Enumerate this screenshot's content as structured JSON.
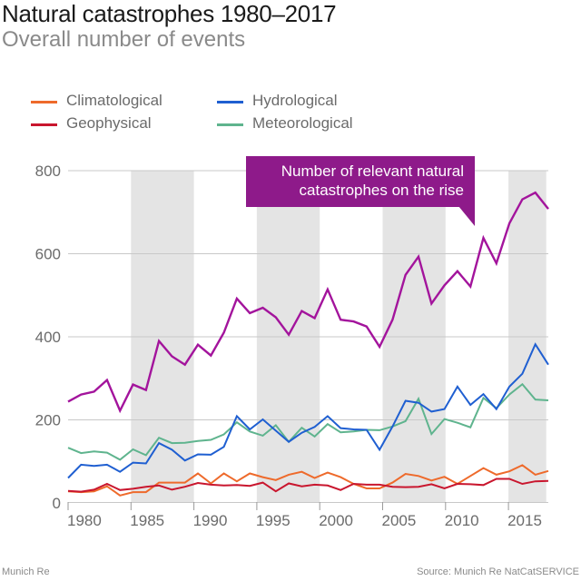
{
  "header": {
    "title": "Natural catastrophes 1980–2017",
    "subtitle": "Overall number of events"
  },
  "footer": {
    "left": "Munich Re",
    "right": "Source: Munich Re NatCatSERVICE"
  },
  "annotation": {
    "line1": "Number of relevant natural",
    "line2": "catastrophes on the rise"
  },
  "chart_data": {
    "type": "line",
    "title": "Natural catastrophes 1980–2017",
    "subtitle": "Overall number of events",
    "xlabel": "",
    "ylabel": "",
    "ylim": [
      0,
      800
    ],
    "xlim": [
      1980,
      2017
    ],
    "yticks": [
      0,
      200,
      400,
      600,
      800
    ],
    "xticks": [
      1980,
      1985,
      1990,
      1995,
      2000,
      2005,
      2010,
      2015
    ],
    "grid": true,
    "shaded_periods": [
      [
        1985,
        1990
      ],
      [
        1995,
        2000
      ],
      [
        2005,
        2010
      ],
      [
        2015,
        2018
      ]
    ],
    "legend_position": "top-left",
    "x": [
      1980,
      1981,
      1982,
      1983,
      1984,
      1985,
      1986,
      1987,
      1988,
      1989,
      1990,
      1991,
      1992,
      1993,
      1994,
      1995,
      1996,
      1997,
      1998,
      1999,
      2000,
      2001,
      2002,
      2003,
      2004,
      2005,
      2006,
      2007,
      2008,
      2009,
      2010,
      2011,
      2012,
      2013,
      2014,
      2015,
      2016,
      2017
    ],
    "series": [
      {
        "name": "Total",
        "color": "#a3149c",
        "in_legend": false,
        "values": [
          244,
          261,
          268,
          296,
          222,
          285,
          272,
          390,
          353,
          333,
          381,
          355,
          410,
          492,
          457,
          470,
          447,
          405,
          462,
          445,
          514,
          441,
          437,
          425,
          376,
          441,
          549,
          593,
          480,
          524,
          558,
          521,
          638,
          577,
          673,
          731,
          747,
          708
        ]
      },
      {
        "name": "Hydrological",
        "color": "#1f5fd1",
        "in_legend": true,
        "values": [
          60,
          92,
          89,
          92,
          75,
          97,
          95,
          144,
          128,
          102,
          117,
          116,
          135,
          209,
          177,
          201,
          174,
          147,
          169,
          183,
          209,
          180,
          177,
          176,
          128,
          184,
          246,
          241,
          220,
          226,
          280,
          236,
          262,
          226,
          280,
          311,
          382,
          333
        ]
      },
      {
        "name": "Meteorological",
        "color": "#5fb48e",
        "in_legend": true,
        "values": [
          133,
          120,
          124,
          121,
          104,
          129,
          115,
          157,
          144,
          145,
          149,
          152,
          165,
          194,
          172,
          162,
          187,
          147,
          181,
          160,
          190,
          170,
          172,
          176,
          175,
          184,
          197,
          251,
          166,
          202,
          193,
          182,
          253,
          228,
          261,
          286,
          249,
          247
        ]
      },
      {
        "name": "Climatological",
        "color": "#ee6a2b",
        "in_legend": true,
        "values": [
          28,
          26,
          28,
          40,
          18,
          26,
          26,
          49,
          49,
          49,
          71,
          47,
          71,
          52,
          71,
          62,
          55,
          68,
          75,
          60,
          73,
          62,
          46,
          35,
          35,
          49,
          70,
          65,
          54,
          63,
          46,
          65,
          84,
          68,
          76,
          91,
          68,
          77
        ]
      },
      {
        "name": "Geophysical",
        "color": "#c9162e",
        "in_legend": true,
        "values": [
          29,
          27,
          32,
          46,
          31,
          34,
          39,
          42,
          32,
          39,
          48,
          44,
          42,
          43,
          41,
          49,
          28,
          47,
          40,
          44,
          42,
          31,
          46,
          44,
          44,
          39,
          38,
          39,
          45,
          35,
          46,
          45,
          43,
          58,
          58,
          46,
          52,
          53
        ]
      }
    ]
  },
  "legend": [
    {
      "label": "Climatological",
      "color": "#ee6a2b"
    },
    {
      "label": "Geophysical",
      "color": "#c9162e"
    },
    {
      "label": "Hydrological",
      "color": "#1f5fd1"
    },
    {
      "label": "Meteorological",
      "color": "#5fb48e"
    }
  ]
}
